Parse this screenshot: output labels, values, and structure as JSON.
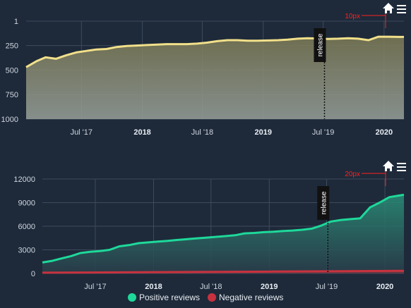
{
  "chart_data": [
    {
      "type": "area",
      "title": "",
      "reversed_y": true,
      "y_ticks": [
        1,
        250,
        500,
        750,
        1000
      ],
      "ylim": [
        1,
        1000
      ],
      "x_range": [
        "2017-01-15",
        "2020-03-01"
      ],
      "x_ticks": [
        {
          "label": "Jul '17",
          "date": "2017-07-01",
          "major": false
        },
        {
          "label": "2018",
          "date": "2018-01-01",
          "major": true
        },
        {
          "label": "Jul '18",
          "date": "2018-07-01",
          "major": false
        },
        {
          "label": "2019",
          "date": "2019-01-01",
          "major": true
        },
        {
          "label": "Jul '19",
          "date": "2019-07-01",
          "major": false
        },
        {
          "label": "2020",
          "date": "2020-01-01",
          "major": true
        }
      ],
      "series": [
        {
          "color": "#f2e08a",
          "x": [
            "2017-01-15",
            "2017-02-15",
            "2017-03-15",
            "2017-04-15",
            "2017-05-15",
            "2017-06-15",
            "2017-07-15",
            "2017-08-15",
            "2017-09-15",
            "2017-10-15",
            "2017-11-15",
            "2017-12-15",
            "2018-01-15",
            "2018-02-15",
            "2018-03-15",
            "2018-04-15",
            "2018-05-15",
            "2018-06-15",
            "2018-07-15",
            "2018-08-15",
            "2018-09-15",
            "2018-10-15",
            "2018-11-15",
            "2018-12-15",
            "2019-01-15",
            "2019-02-15",
            "2019-03-15",
            "2019-04-15",
            "2019-05-15",
            "2019-06-15",
            "2019-07-15",
            "2019-08-15",
            "2019-09-15",
            "2019-10-15",
            "2019-11-15",
            "2019-12-15",
            "2020-01-15",
            "2020-02-15",
            "2020-03-01"
          ],
          "values": [
            470,
            410,
            370,
            385,
            350,
            320,
            305,
            290,
            285,
            265,
            255,
            250,
            245,
            240,
            235,
            235,
            235,
            230,
            220,
            205,
            195,
            195,
            200,
            200,
            198,
            195,
            190,
            180,
            175,
            178,
            182,
            180,
            175,
            180,
            195,
            160,
            160,
            162,
            162
          ]
        }
      ],
      "annotation": {
        "label": "10px",
        "color": "#ff2020"
      },
      "release": {
        "label": "release",
        "date": "2019-07-05"
      },
      "colors": {
        "background": "#1e2a3a",
        "grid": "#3d4b5c",
        "area_top": "#7c7a54",
        "area_bottom": "#98a09a"
      }
    },
    {
      "type": "area",
      "title": "",
      "y_ticks": [
        0,
        3000,
        6000,
        9000,
        12000
      ],
      "ylim": [
        0,
        12000
      ],
      "x_range": [
        "2017-01-15",
        "2020-03-01"
      ],
      "x_ticks": [
        {
          "label": "Jul '17",
          "date": "2017-07-01",
          "major": false
        },
        {
          "label": "2018",
          "date": "2018-01-01",
          "major": true
        },
        {
          "label": "Jul '18",
          "date": "2018-07-01",
          "major": false
        },
        {
          "label": "2019",
          "date": "2019-01-01",
          "major": true
        },
        {
          "label": "Jul '19",
          "date": "2019-07-01",
          "major": false
        },
        {
          "label": "2020",
          "date": "2020-01-01",
          "major": true
        }
      ],
      "series": [
        {
          "name": "Positive reviews",
          "color": "#1ed99a",
          "x": [
            "2017-01-15",
            "2017-02-15",
            "2017-03-15",
            "2017-04-15",
            "2017-05-15",
            "2017-06-15",
            "2017-07-15",
            "2017-08-15",
            "2017-09-15",
            "2017-10-15",
            "2017-11-15",
            "2017-12-15",
            "2018-01-15",
            "2018-02-15",
            "2018-03-15",
            "2018-04-15",
            "2018-05-15",
            "2018-06-15",
            "2018-07-15",
            "2018-08-15",
            "2018-09-15",
            "2018-10-15",
            "2018-11-15",
            "2018-12-15",
            "2019-01-15",
            "2019-02-15",
            "2019-03-15",
            "2019-04-15",
            "2019-05-15",
            "2019-06-15",
            "2019-07-15",
            "2019-08-15",
            "2019-09-15",
            "2019-10-15",
            "2019-11-15",
            "2019-12-15",
            "2020-01-15",
            "2020-02-15",
            "2020-03-01"
          ],
          "values": [
            1400,
            1600,
            1900,
            2200,
            2600,
            2750,
            2850,
            3000,
            3450,
            3600,
            3850,
            3950,
            4050,
            4150,
            4250,
            4350,
            4450,
            4550,
            4650,
            4750,
            4850,
            5100,
            5150,
            5250,
            5300,
            5400,
            5450,
            5550,
            5700,
            6100,
            6600,
            6800,
            6900,
            7000,
            8400,
            9000,
            9700,
            9900,
            10000
          ]
        },
        {
          "name": "Negative reviews",
          "color": "#c8323f",
          "x": [
            "2017-01-15",
            "2018-01-15",
            "2019-01-15",
            "2019-07-15",
            "2020-03-01"
          ],
          "values": [
            100,
            170,
            240,
            280,
            340
          ]
        }
      ],
      "annotation": {
        "label": "20px",
        "color": "#ff2020"
      },
      "release": {
        "label": "release",
        "date": "2019-07-05"
      },
      "colors": {
        "background": "#1e2a3a",
        "grid": "#3d4b5c",
        "area_top": "#2a8f78",
        "area_bottom": "#2a3d4a"
      }
    }
  ],
  "toolbar": {
    "home_icon": "home-icon",
    "menu_icon": "menu-icon"
  }
}
